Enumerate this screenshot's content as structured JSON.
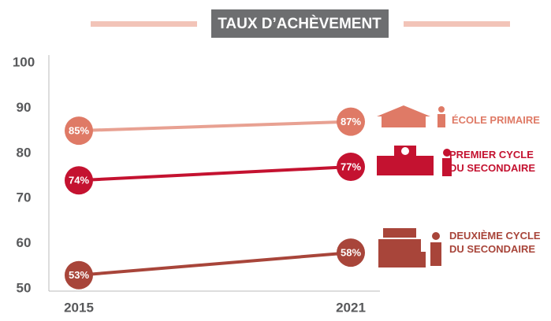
{
  "chart_data": {
    "type": "line",
    "title": "TAUX D’ACHÈVEMENT",
    "categories": [
      "2015",
      "2021"
    ],
    "series": [
      {
        "name": "ÉCOLE PRIMAIRE",
        "color": "#df7a66",
        "values": [
          85,
          87
        ],
        "value_labels": [
          "85%",
          "87%"
        ]
      },
      {
        "name": "PREMIER CYCLE DU SECONDAIRE",
        "color": "#c41230",
        "values": [
          74,
          77
        ],
        "value_labels": [
          "74%",
          "77%"
        ]
      },
      {
        "name": "DEUXIÈME CYCLE DU SECONDAIRE",
        "color": "#a8453a",
        "values": [
          53,
          58
        ],
        "value_labels": [
          "53%",
          "58%"
        ]
      }
    ],
    "ylim": [
      50,
      100
    ],
    "yticks": [
      50,
      60,
      70,
      80,
      90,
      100
    ],
    "grid": false
  }
}
